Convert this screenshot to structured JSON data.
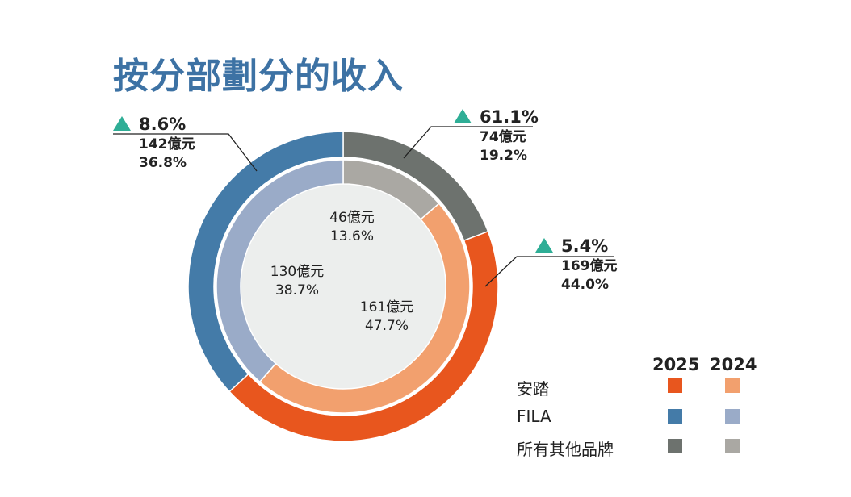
{
  "title": "按分部劃分的收入",
  "chart_data": {
    "type": "pie",
    "subtype": "nested-donut",
    "title": "按分部劃分的收入",
    "categories": [
      "安踏",
      "FILA",
      "所有其他品牌"
    ],
    "series": [
      {
        "name": "2025",
        "ring": "outer",
        "values": [
          169,
          142,
          74
        ],
        "value_labels": [
          "169億元",
          "142億元",
          "74億元"
        ],
        "percent_labels": [
          "44.0%",
          "36.8%",
          "19.2%"
        ],
        "percents": [
          44.0,
          36.8,
          19.2
        ],
        "growth_labels": [
          "5.4%",
          "8.6%",
          "61.1%"
        ],
        "colors": [
          "#e8561e",
          "#447ba8",
          "#6d726e"
        ]
      },
      {
        "name": "2024",
        "ring": "inner",
        "values": [
          161,
          130,
          46
        ],
        "value_labels": [
          "161億元",
          "130億元",
          "46億元"
        ],
        "percent_labels": [
          "47.7%",
          "38.7%",
          "13.6%"
        ],
        "percents": [
          47.7,
          38.7,
          13.6
        ],
        "colors": [
          "#f2a06e",
          "#9aabc8",
          "#aaa8a3"
        ]
      }
    ],
    "legend": {
      "placement": "bottom-right",
      "headers": [
        "2025",
        "2024"
      ],
      "labels": [
        "安踏",
        "FILA",
        "所有其他品牌"
      ]
    },
    "growth_indicator_color": "#2fae96"
  }
}
